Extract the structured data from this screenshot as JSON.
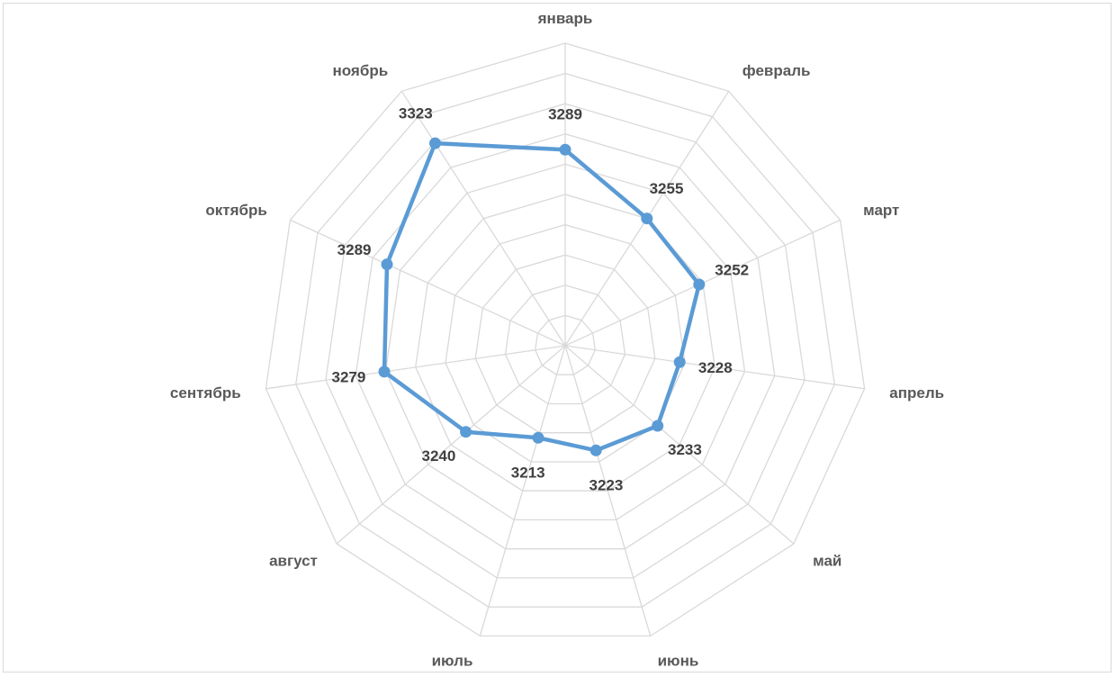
{
  "chart_data": {
    "type": "radar",
    "title": "",
    "categories": [
      "январь",
      "февраль",
      "март",
      "апрель",
      "май",
      "июнь",
      "июль",
      "август",
      "сентябрь",
      "октябрь",
      "ноябрь"
    ],
    "series": [
      {
        "values": [
          3289,
          3255,
          3252,
          3228,
          3233,
          3223,
          3213,
          3240,
          3279,
          3289,
          3323
        ],
        "color": "#5b9bd5"
      }
    ],
    "value_labels": [
      "3289",
      "3255",
      "3252",
      "3228",
      "3233",
      "3223",
      "3213",
      "3240",
      "3279",
      "3289",
      "3323"
    ],
    "radial_range": [
      3140,
      3370
    ],
    "grid_rings": 10,
    "grid_color": "#d9d9d9",
    "legend": "none"
  }
}
